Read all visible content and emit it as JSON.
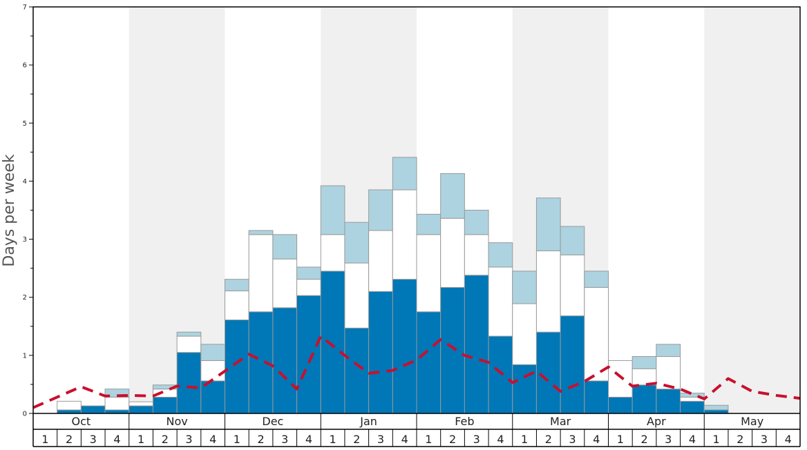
{
  "chart_data": {
    "type": "bar",
    "ylabel": "Days per week",
    "ylim": [
      0,
      7
    ],
    "yticks": [
      0,
      1,
      2,
      3,
      4,
      5,
      6,
      7
    ],
    "months": [
      "Oct",
      "Nov",
      "Dec",
      "Jan",
      "Feb",
      "Mar",
      "Apr",
      "May"
    ],
    "week_labels": [
      "1",
      "2",
      "3",
      "4"
    ],
    "colors": {
      "bottom": "#0077b6",
      "middle": "#ffffff",
      "top": "#add3e0",
      "line": "#c8102e",
      "band": "#f0f0f0",
      "bar_edge": "#999999"
    },
    "bottom_values": [
      0,
      0.06,
      0.13,
      0.06,
      0.13,
      0.28,
      1.05,
      0.56,
      1.61,
      1.75,
      1.82,
      2.03,
      2.45,
      1.47,
      2.1,
      2.31,
      1.75,
      2.17,
      2.38,
      1.33,
      0.84,
      1.4,
      1.68,
      0.56,
      0.28,
      0.49,
      0.42,
      0.21,
      0.06,
      0,
      0,
      0
    ],
    "middle_values": [
      0,
      0.15,
      0,
      0.22,
      0.07,
      0.14,
      0.28,
      0.35,
      0.5,
      1.33,
      0.84,
      0.28,
      0.63,
      1.12,
      1.05,
      1.54,
      1.33,
      1.19,
      0.7,
      1.19,
      1.05,
      1.4,
      1.05,
      1.61,
      0.63,
      0.28,
      0.56,
      0.07,
      0,
      0,
      0,
      0
    ],
    "top_values": [
      0,
      0,
      0,
      0.14,
      0,
      0.07,
      0.07,
      0.28,
      0.2,
      0.07,
      0.42,
      0.21,
      0.84,
      0.7,
      0.7,
      0.56,
      0.35,
      0.77,
      0.42,
      0.42,
      0.56,
      0.91,
      0.49,
      0.28,
      0,
      0.21,
      0.21,
      0.07,
      0.08,
      0,
      0,
      0
    ],
    "line_values": [
      0.1,
      0.28,
      0.46,
      0.3,
      0.31,
      0.3,
      0.47,
      0.44,
      0.73,
      1.02,
      0.82,
      0.42,
      1.33,
      1.0,
      0.69,
      0.74,
      0.92,
      1.27,
      1.0,
      0.88,
      0.53,
      0.73,
      0.38,
      0.55,
      0.8,
      0.47,
      0.52,
      0.42,
      0.25,
      0.6,
      0.38,
      0.31,
      0.26
    ]
  }
}
